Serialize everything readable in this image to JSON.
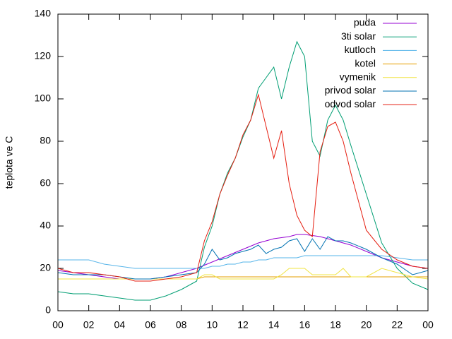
{
  "chart_data": {
    "type": "line",
    "ylabel": "teplota ve C",
    "x": [
      0,
      1,
      2,
      3,
      4,
      5,
      6,
      7,
      8,
      9,
      9.5,
      10,
      10.5,
      11,
      11.5,
      12,
      12.5,
      13,
      13.5,
      14,
      14.5,
      15,
      15.5,
      16,
      16.5,
      17,
      17.5,
      18,
      18.5,
      19,
      20,
      21,
      22,
      23,
      24
    ],
    "series": [
      {
        "name": "puda",
        "color": "#9400d3",
        "values": [
          19,
          18,
          17,
          16,
          15,
          15,
          15,
          16,
          18,
          20,
          21.5,
          23,
          24.5,
          26,
          27.5,
          29,
          30.5,
          32,
          33,
          34,
          34.5,
          35,
          36,
          36,
          35.5,
          35,
          34,
          33,
          32,
          31,
          28,
          25,
          23,
          21,
          20
        ]
      },
      {
        "name": "3ti solar",
        "color": "#009e73",
        "values": [
          9,
          8,
          8,
          7,
          6,
          5,
          5,
          7,
          10,
          14,
          30,
          40,
          55,
          65,
          72,
          82,
          90,
          105,
          110,
          115,
          100,
          115,
          127,
          120,
          80,
          73,
          90,
          97,
          90,
          78,
          55,
          32,
          20,
          13,
          10
        ]
      },
      {
        "name": "kutloch",
        "color": "#56b4e9",
        "values": [
          24,
          24,
          24,
          22,
          21,
          20,
          20,
          20,
          20,
          20,
          20,
          21,
          21,
          22,
          22,
          23,
          23,
          24,
          24,
          25,
          25,
          25,
          25,
          26,
          26,
          26,
          26,
          26,
          26,
          26,
          26,
          26,
          25,
          24,
          24
        ]
      },
      {
        "name": "kotel",
        "color": "#e69f00",
        "values": [
          15,
          15,
          15,
          15,
          15,
          15,
          15,
          15,
          15,
          15,
          16,
          16,
          16,
          16,
          16,
          16,
          16,
          16,
          16,
          16,
          16,
          16,
          16,
          16,
          16,
          16,
          16,
          16,
          16,
          16,
          16,
          16,
          16,
          16,
          16
        ]
      },
      {
        "name": "vymenik",
        "color": "#f0e442",
        "values": [
          15,
          15,
          15,
          15,
          15,
          15,
          15,
          15,
          15,
          15,
          17,
          17,
          15,
          15,
          15,
          15,
          15,
          15,
          15,
          15,
          17,
          20,
          20,
          20,
          17,
          17,
          17,
          17,
          20,
          16,
          16,
          20,
          18,
          16,
          15
        ]
      },
      {
        "name": "privod solar",
        "color": "#0072b2",
        "values": [
          18,
          17,
          17,
          17,
          16,
          15,
          15,
          16,
          17,
          18,
          22,
          29,
          24,
          25,
          27,
          28,
          29,
          31,
          27,
          29,
          30,
          33,
          34,
          28,
          34,
          29,
          35,
          33,
          33,
          32,
          29,
          25,
          22,
          17,
          19
        ]
      },
      {
        "name": "odvod solar",
        "color": "#e51e10",
        "values": [
          20,
          18,
          18,
          17,
          16,
          14,
          14,
          15,
          16,
          18,
          33,
          42,
          55,
          64,
          72,
          83,
          90,
          102,
          87,
          72,
          85,
          60,
          45,
          38,
          35,
          75,
          87,
          89,
          80,
          65,
          38,
          29,
          24,
          21,
          20
        ]
      }
    ],
    "xlim": [
      0,
      24
    ],
    "xticks": [
      {
        "value": 0,
        "label": "00"
      },
      {
        "value": 2,
        "label": "02"
      },
      {
        "value": 4,
        "label": "04"
      },
      {
        "value": 6,
        "label": "06"
      },
      {
        "value": 8,
        "label": "08"
      },
      10,
      12,
      14,
      16,
      18,
      20,
      22,
      {
        "value": 24,
        "label": "00"
      }
    ],
    "ylim": [
      0,
      140
    ],
    "yticks": [
      0,
      20,
      40,
      60,
      80,
      100,
      120,
      140
    ],
    "legend": "top-right"
  }
}
